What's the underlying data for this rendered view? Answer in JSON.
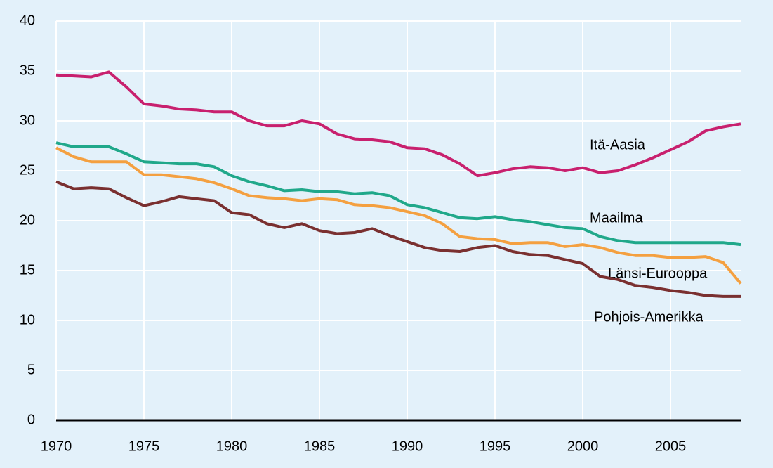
{
  "chart_data": {
    "type": "line",
    "x": [
      1970,
      1971,
      1972,
      1973,
      1974,
      1975,
      1976,
      1977,
      1978,
      1979,
      1980,
      1981,
      1982,
      1983,
      1984,
      1985,
      1986,
      1987,
      1988,
      1989,
      1990,
      1991,
      1992,
      1993,
      1994,
      1995,
      1996,
      1997,
      1998,
      1999,
      2000,
      2001,
      2002,
      2003,
      2004,
      2005,
      2006,
      2007,
      2008,
      2009
    ],
    "series": [
      {
        "name": "Itä-Aasia",
        "color": "#c8206e",
        "values": [
          34.6,
          34.5,
          34.4,
          34.9,
          33.4,
          31.7,
          31.5,
          31.2,
          31.1,
          30.9,
          30.9,
          30.0,
          29.5,
          29.5,
          30.0,
          29.7,
          28.7,
          28.2,
          28.1,
          27.9,
          27.3,
          27.2,
          26.6,
          25.7,
          24.5,
          24.8,
          25.2,
          25.4,
          25.3,
          25.0,
          25.3,
          24.8,
          25.0,
          25.6,
          26.3,
          27.1,
          27.9,
          29.0,
          29.4,
          29.7
        ]
      },
      {
        "name": "Maailma",
        "color": "#20a88a",
        "values": [
          27.8,
          27.4,
          27.4,
          27.4,
          26.7,
          25.9,
          25.8,
          25.7,
          25.7,
          25.4,
          24.5,
          23.9,
          23.5,
          23.0,
          23.1,
          22.9,
          22.9,
          22.7,
          22.8,
          22.5,
          21.6,
          21.3,
          20.8,
          20.3,
          20.2,
          20.4,
          20.1,
          19.9,
          19.6,
          19.3,
          19.2,
          18.4,
          18.0,
          17.8,
          17.8,
          17.8,
          17.8,
          17.8,
          17.8,
          17.6
        ]
      },
      {
        "name": "Länsi-Eurooppa",
        "color": "#f4a040",
        "values": [
          27.3,
          26.4,
          25.9,
          25.9,
          25.9,
          24.6,
          24.6,
          24.4,
          24.2,
          23.8,
          23.2,
          22.5,
          22.3,
          22.2,
          22.0,
          22.2,
          22.1,
          21.6,
          21.5,
          21.3,
          20.9,
          20.5,
          19.7,
          18.4,
          18.2,
          18.1,
          17.7,
          17.8,
          17.8,
          17.4,
          17.6,
          17.3,
          16.8,
          16.5,
          16.5,
          16.3,
          16.3,
          16.4,
          15.8,
          13.7
        ]
      },
      {
        "name": "Pohjois-Amerikka",
        "color": "#7a3030",
        "values": [
          23.9,
          23.2,
          23.3,
          23.2,
          22.3,
          21.5,
          21.9,
          22.4,
          22.2,
          22.0,
          20.8,
          20.6,
          19.7,
          19.3,
          19.7,
          19.0,
          18.7,
          18.8,
          19.2,
          18.5,
          17.9,
          17.3,
          17.0,
          16.9,
          17.3,
          17.5,
          16.9,
          16.6,
          16.5,
          16.1,
          15.7,
          14.4,
          14.1,
          13.5,
          13.3,
          13.0,
          12.8,
          12.5,
          12.4,
          12.4
        ]
      }
    ],
    "xlim": [
      1970,
      2009
    ],
    "xticks": [
      1970,
      1975,
      1980,
      1985,
      1990,
      1995,
      2000,
      2005
    ],
    "ylim": [
      0,
      40
    ],
    "yticks": [
      0,
      5,
      10,
      15,
      20,
      25,
      30,
      35,
      40
    ],
    "grid": true
  }
}
